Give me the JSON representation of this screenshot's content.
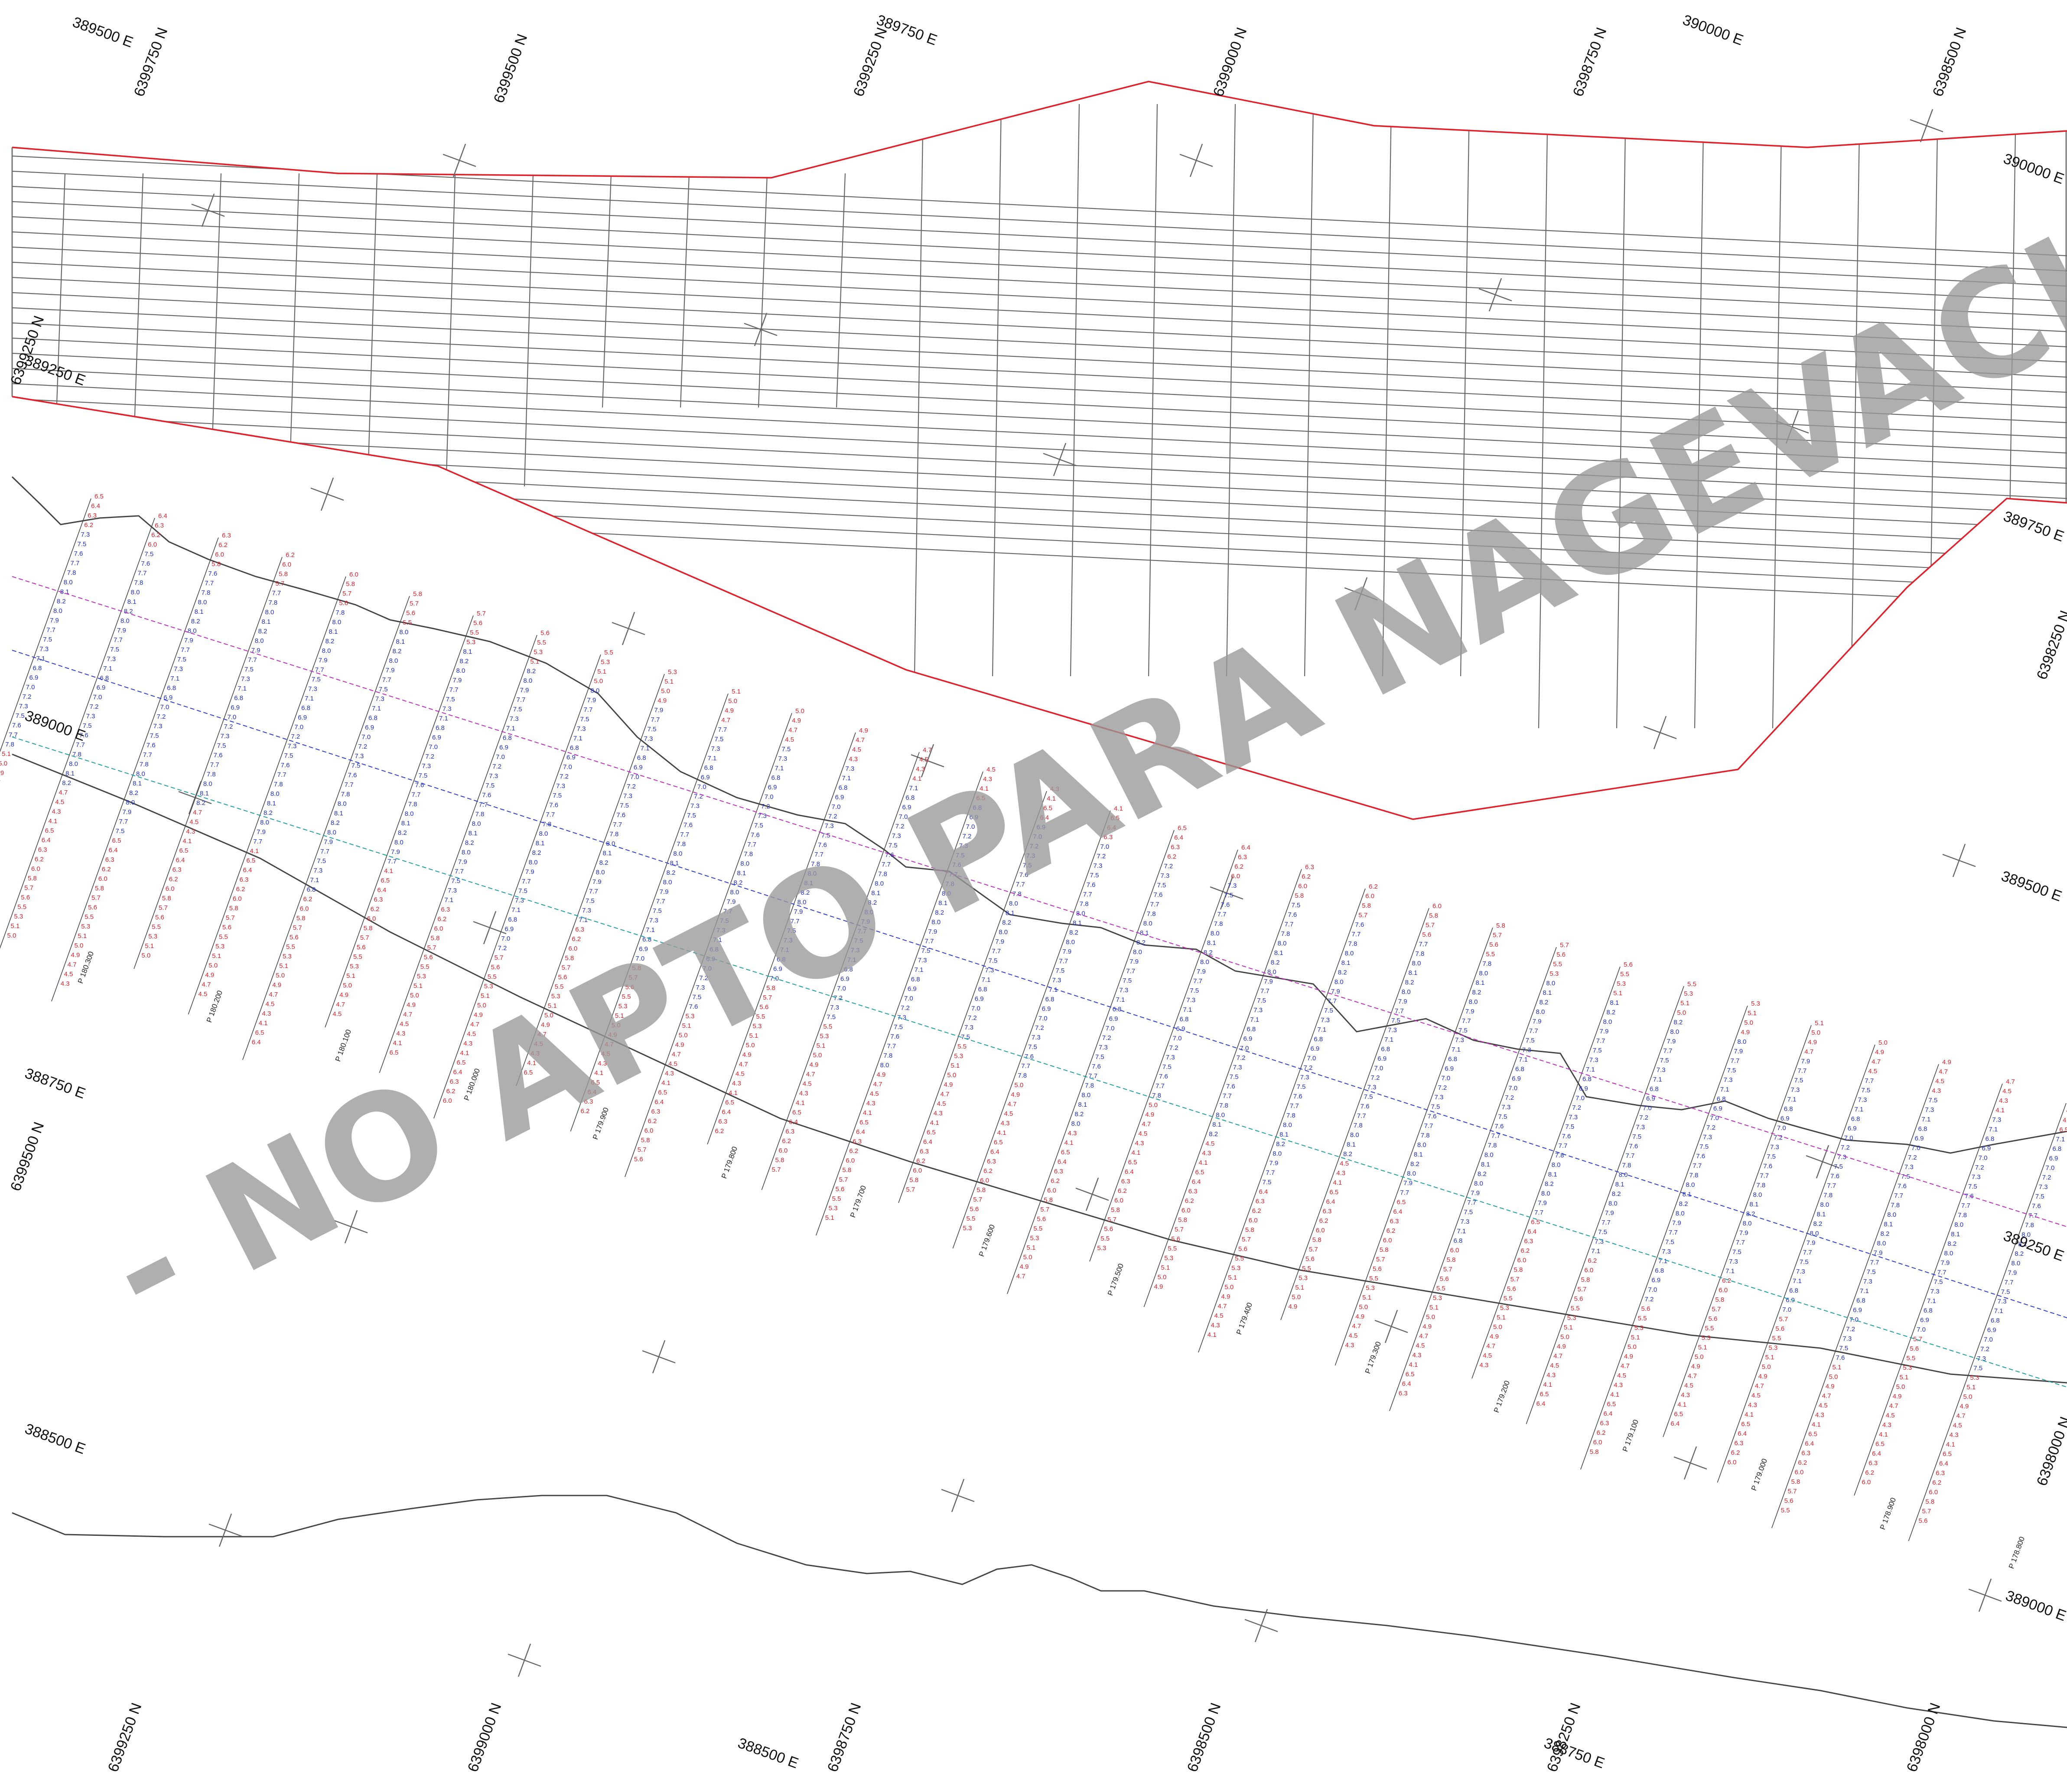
{
  "watermark": "- NO APTO PARA NAGEVACIÓN -",
  "colors": {
    "boundary": "#e0202a",
    "shoreline": "#444444",
    "sounding_shallow": "#e0202a",
    "sounding_deep": "#2030d0",
    "grid_line": "#666666"
  },
  "coordinate_labels": {
    "top": [
      "389500 E",
      "6399750 N",
      "6399500 N",
      "389750 E",
      "6399250 N",
      "6399000 N",
      "6398750 N",
      "390000 E",
      "6398500 N"
    ],
    "left": [
      "6399250 N",
      "389250 E",
      "389000 E",
      "388750 E",
      "6399500 N",
      "388500 E"
    ],
    "right": [
      "390000 E",
      "389750 E",
      "6398250 N",
      "389500 E",
      "389250 E",
      "6398000 N",
      "389000 E"
    ],
    "bottom": [
      "6399250 N",
      "6399000 N",
      "388500 E",
      "6398750 N",
      "6398500 N",
      "6398250 N",
      "388750 E",
      "6398000 N"
    ]
  },
  "profiles": [
    "P 180.300",
    "P 180.200",
    "P 180.100",
    "P 180.000",
    "P 179.900",
    "P 179.800",
    "P 179.700",
    "P 179.600",
    "P 179.500",
    "P 179.400",
    "P 179.300",
    "P 179.200",
    "P 179.100",
    "P 179.000",
    "P 178.900",
    "P 178.800"
  ]
}
